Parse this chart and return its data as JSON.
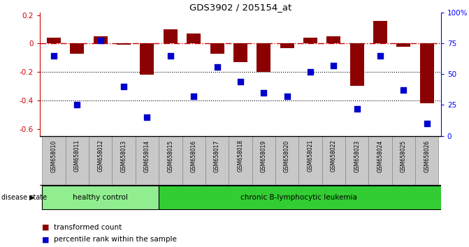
{
  "title": "GDS3902 / 205154_at",
  "samples": [
    "GSM658010",
    "GSM658011",
    "GSM658012",
    "GSM658013",
    "GSM658014",
    "GSM658015",
    "GSM658016",
    "GSM658017",
    "GSM658018",
    "GSM658019",
    "GSM658020",
    "GSM658021",
    "GSM658022",
    "GSM658023",
    "GSM658024",
    "GSM658025",
    "GSM658026"
  ],
  "bar_values": [
    0.04,
    -0.07,
    0.05,
    -0.01,
    -0.22,
    0.1,
    0.07,
    -0.07,
    -0.13,
    -0.2,
    -0.03,
    0.04,
    0.05,
    -0.3,
    0.16,
    -0.02,
    -0.42
  ],
  "percentile_vals": [
    65,
    25,
    77,
    40,
    15,
    65,
    32,
    56,
    44,
    35,
    32,
    52,
    57,
    22,
    65,
    37,
    10
  ],
  "bar_color": "#8B0000",
  "dot_color": "#0000CD",
  "healthy_control_count": 5,
  "ylim_left": [
    -0.65,
    0.22
  ],
  "ylim_right": [
    0,
    100
  ],
  "yticks_left": [
    0.2,
    0.0,
    -0.2,
    -0.4,
    -0.6
  ],
  "ytick_labels_left": [
    "0.2",
    "0",
    "-0.2",
    "-0.4",
    "-0.6"
  ],
  "yticks_right": [
    100,
    75,
    50,
    25,
    0
  ],
  "ytick_labels_right": [
    "100%",
    "75",
    "50",
    "25",
    "0"
  ],
  "dotted_lines": [
    -0.2,
    -0.4
  ],
  "background_color": "#ffffff",
  "healthy_label": "healthy control",
  "disease_label": "chronic B-lymphocytic leukemia",
  "healthy_bg": "#90EE90",
  "disease_bg": "#32CD32",
  "label_bar": "transformed count",
  "label_dot": "percentile rank within the sample",
  "disease_state_label": "disease state",
  "gray_box_color": "#c8c8c8",
  "gray_box_edge": "#888888"
}
